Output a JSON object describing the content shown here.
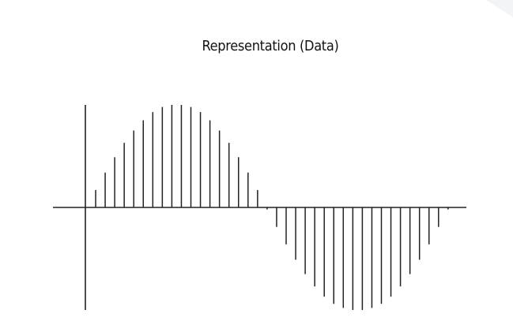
{
  "title": "Representation (Data)",
  "colors": {
    "background": "#ffffff",
    "stroke": "#222222",
    "corner_accent": "#f3f4f6"
  },
  "chart_data": {
    "type": "stem",
    "description_of_shape": "sampled sine wave, one full period",
    "samples": [
      0.17,
      0.34,
      0.49,
      0.63,
      0.75,
      0.85,
      0.93,
      0.98,
      1.0,
      1.0,
      0.98,
      0.93,
      0.85,
      0.75,
      0.63,
      0.49,
      0.34,
      0.17,
      -0.02,
      -0.19,
      -0.36,
      -0.51,
      -0.65,
      -0.77,
      -0.87,
      -0.94,
      -0.98,
      -1.0,
      -1.0,
      -0.98,
      -0.94,
      -0.87,
      -0.77,
      -0.65,
      -0.51,
      -0.36,
      -0.19,
      -0.02
    ]
  }
}
